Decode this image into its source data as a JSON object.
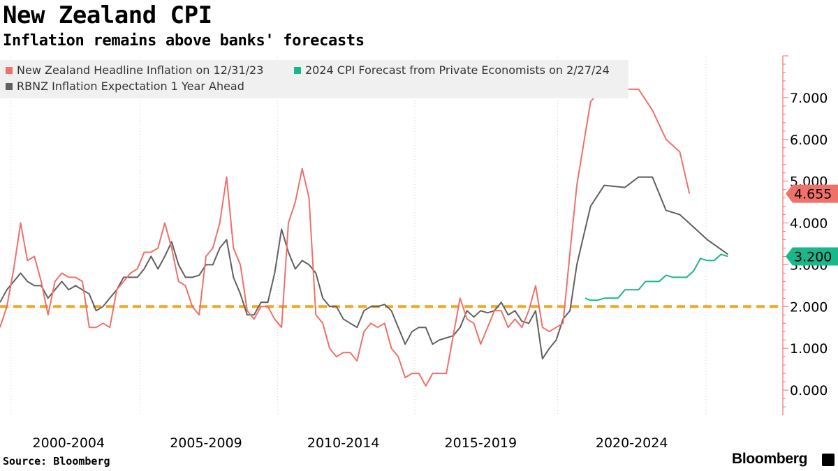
{
  "header": {
    "title": "New Zealand CPI",
    "subtitle": "Inflation remains above banks' forecasts"
  },
  "footer": {
    "source": "Source: Bloomberg",
    "brand": "Bloomberg"
  },
  "chart_data": {
    "type": "line",
    "title": "New Zealand CPI",
    "subtitle": "Inflation remains above banks' forecasts",
    "ylim": [
      -0.6,
      8.0
    ],
    "y_ticks": [
      0,
      1,
      2,
      3,
      4,
      5,
      6,
      7
    ],
    "y_tick_labels": [
      "0.000",
      "1.000",
      "2.000",
      "3.000",
      "4.000",
      "5.000",
      "6.000",
      "7.000"
    ],
    "y_axis_position": "right",
    "x_labels": [
      {
        "label": "2000-2004",
        "at": 2002
      },
      {
        "label": "2005-2009",
        "at": 2007
      },
      {
        "label": "2010-2014",
        "at": 2012
      },
      {
        "label": "2015-2019",
        "at": 2017
      },
      {
        "label": "2020-2024",
        "at": 2022.5
      }
    ],
    "x_boundaries": [
      1999.9,
      2004.6,
      2009.6,
      2014.6,
      2019.8,
      2025.2
    ],
    "xlim": [
      1999.5,
      2028
    ],
    "grid": true,
    "legend_position": "top-left",
    "reference_line": {
      "value": 2.0,
      "color": "#f5a623",
      "style": "dashed"
    },
    "series": [
      {
        "name": "New Zealand Headline Inflation on 12/31/23",
        "color": "#f0706a",
        "end_label": "4.655",
        "points": [
          [
            1999.5,
            1.5
          ],
          [
            1999.75,
            2.0
          ],
          [
            2000.0,
            2.9
          ],
          [
            2000.25,
            4.0
          ],
          [
            2000.5,
            3.1
          ],
          [
            2000.75,
            3.2
          ],
          [
            2001.0,
            2.6
          ],
          [
            2001.25,
            1.8
          ],
          [
            2001.5,
            2.6
          ],
          [
            2001.75,
            2.8
          ],
          [
            2002.0,
            2.7
          ],
          [
            2002.25,
            2.7
          ],
          [
            2002.5,
            2.6
          ],
          [
            2002.75,
            1.5
          ],
          [
            2003.0,
            1.5
          ],
          [
            2003.25,
            1.6
          ],
          [
            2003.5,
            1.5
          ],
          [
            2003.75,
            2.4
          ],
          [
            2004.0,
            2.6
          ],
          [
            2004.25,
            2.8
          ],
          [
            2004.5,
            2.9
          ],
          [
            2004.75,
            3.3
          ],
          [
            2005.0,
            3.3
          ],
          [
            2005.25,
            3.4
          ],
          [
            2005.5,
            4.0
          ],
          [
            2005.75,
            3.4
          ],
          [
            2006.0,
            2.6
          ],
          [
            2006.25,
            2.5
          ],
          [
            2006.5,
            2.0
          ],
          [
            2006.75,
            1.8
          ],
          [
            2007.0,
            3.2
          ],
          [
            2007.25,
            3.4
          ],
          [
            2007.5,
            4.0
          ],
          [
            2007.75,
            5.1
          ],
          [
            2008.0,
            3.4
          ],
          [
            2008.25,
            3.0
          ],
          [
            2008.5,
            1.9
          ],
          [
            2008.75,
            1.7
          ],
          [
            2009.0,
            2.0
          ],
          [
            2009.25,
            2.0
          ],
          [
            2009.5,
            1.7
          ],
          [
            2009.75,
            1.5
          ],
          [
            2010.0,
            4.0
          ],
          [
            2010.25,
            4.5
          ],
          [
            2010.5,
            5.3
          ],
          [
            2010.75,
            4.6
          ],
          [
            2011.0,
            1.8
          ],
          [
            2011.25,
            1.6
          ],
          [
            2011.5,
            1.0
          ],
          [
            2011.75,
            0.8
          ],
          [
            2012.0,
            0.9
          ],
          [
            2012.25,
            0.9
          ],
          [
            2012.5,
            0.7
          ],
          [
            2012.75,
            1.4
          ],
          [
            2013.0,
            1.6
          ],
          [
            2013.25,
            1.5
          ],
          [
            2013.5,
            1.6
          ],
          [
            2013.75,
            1.0
          ],
          [
            2014.0,
            0.8
          ],
          [
            2014.25,
            0.3
          ],
          [
            2014.5,
            0.4
          ],
          [
            2014.75,
            0.4
          ],
          [
            2015.0,
            0.1
          ],
          [
            2015.25,
            0.4
          ],
          [
            2015.5,
            0.4
          ],
          [
            2015.75,
            0.4
          ],
          [
            2016.0,
            1.3
          ],
          [
            2016.25,
            2.2
          ],
          [
            2016.5,
            1.7
          ],
          [
            2016.75,
            1.6
          ],
          [
            2017.0,
            1.1
          ],
          [
            2017.25,
            1.5
          ],
          [
            2017.5,
            1.9
          ],
          [
            2017.75,
            1.9
          ],
          [
            2018.0,
            1.5
          ],
          [
            2018.25,
            1.7
          ],
          [
            2018.5,
            1.5
          ],
          [
            2018.75,
            1.9
          ],
          [
            2019.0,
            2.5
          ],
          [
            2019.25,
            1.5
          ],
          [
            2019.5,
            1.4
          ],
          [
            2019.75,
            1.5
          ],
          [
            2020.0,
            1.6
          ],
          [
            2020.25,
            3.3
          ],
          [
            2020.5,
            4.9
          ],
          [
            2020.75,
            5.9
          ],
          [
            2021.0,
            6.9
          ],
          [
            2021.25,
            7.1
          ],
          [
            2021.5,
            7.3
          ],
          [
            2022.25,
            7.2
          ],
          [
            2022.75,
            7.2
          ],
          [
            2023.25,
            6.7
          ],
          [
            2023.75,
            6.0
          ],
          [
            2024.25,
            5.7
          ],
          [
            2024.6,
            4.7
          ]
        ]
      },
      {
        "name": "2024 CPI Forecast from Private Economists on 2/27/24",
        "color": "#18b78c",
        "end_label": "3.200",
        "points": [
          [
            2020.8,
            2.2
          ],
          [
            2021.0,
            2.15
          ],
          [
            2021.25,
            2.15
          ],
          [
            2021.5,
            2.2
          ],
          [
            2021.75,
            2.2
          ],
          [
            2022.0,
            2.2
          ],
          [
            2022.25,
            2.4
          ],
          [
            2022.5,
            2.4
          ],
          [
            2022.75,
            2.4
          ],
          [
            2023.0,
            2.6
          ],
          [
            2023.25,
            2.6
          ],
          [
            2023.5,
            2.6
          ],
          [
            2023.75,
            2.75
          ],
          [
            2024.0,
            2.7
          ],
          [
            2024.25,
            2.7
          ],
          [
            2024.5,
            2.7
          ],
          [
            2024.75,
            2.85
          ],
          [
            2025.0,
            3.15
          ],
          [
            2025.25,
            3.1
          ],
          [
            2025.5,
            3.1
          ],
          [
            2025.75,
            3.25
          ],
          [
            2026.0,
            3.2
          ]
        ]
      },
      {
        "name": "RBNZ Inflation Expectation 1 Year Ahead",
        "color": "#606060",
        "end_label": "",
        "points": [
          [
            1999.5,
            2.1
          ],
          [
            1999.75,
            2.4
          ],
          [
            2000.0,
            2.6
          ],
          [
            2000.25,
            2.8
          ],
          [
            2000.5,
            2.6
          ],
          [
            2000.75,
            2.5
          ],
          [
            2001.0,
            2.5
          ],
          [
            2001.25,
            2.2
          ],
          [
            2001.5,
            2.4
          ],
          [
            2001.75,
            2.6
          ],
          [
            2002.0,
            2.4
          ],
          [
            2002.25,
            2.5
          ],
          [
            2002.5,
            2.4
          ],
          [
            2002.75,
            2.3
          ],
          [
            2003.0,
            1.9
          ],
          [
            2003.25,
            2.0
          ],
          [
            2003.5,
            2.2
          ],
          [
            2003.75,
            2.4
          ],
          [
            2004.0,
            2.7
          ],
          [
            2004.25,
            2.7
          ],
          [
            2004.5,
            2.7
          ],
          [
            2004.75,
            2.9
          ],
          [
            2005.0,
            3.2
          ],
          [
            2005.25,
            2.9
          ],
          [
            2005.5,
            3.2
          ],
          [
            2005.75,
            3.55
          ],
          [
            2006.0,
            3.0
          ],
          [
            2006.25,
            2.7
          ],
          [
            2006.5,
            2.7
          ],
          [
            2006.75,
            2.75
          ],
          [
            2007.0,
            3.0
          ],
          [
            2007.25,
            3.0
          ],
          [
            2007.5,
            3.4
          ],
          [
            2007.75,
            3.6
          ],
          [
            2008.0,
            2.7
          ],
          [
            2008.25,
            2.3
          ],
          [
            2008.5,
            1.8
          ],
          [
            2008.75,
            1.8
          ],
          [
            2009.0,
            2.1
          ],
          [
            2009.25,
            2.1
          ],
          [
            2009.5,
            2.8
          ],
          [
            2009.75,
            3.85
          ],
          [
            2010.0,
            3.3
          ],
          [
            2010.25,
            2.9
          ],
          [
            2010.5,
            3.1
          ],
          [
            2010.75,
            3.0
          ],
          [
            2011.0,
            2.8
          ],
          [
            2011.25,
            2.2
          ],
          [
            2011.5,
            2.0
          ],
          [
            2011.75,
            2.0
          ],
          [
            2012.0,
            1.7
          ],
          [
            2012.25,
            1.6
          ],
          [
            2012.5,
            1.5
          ],
          [
            2012.75,
            1.9
          ],
          [
            2013.0,
            2.0
          ],
          [
            2013.25,
            2.0
          ],
          [
            2013.5,
            2.05
          ],
          [
            2013.75,
            1.9
          ],
          [
            2014.0,
            1.5
          ],
          [
            2014.25,
            1.1
          ],
          [
            2014.5,
            1.4
          ],
          [
            2014.75,
            1.5
          ],
          [
            2015.0,
            1.5
          ],
          [
            2015.25,
            1.1
          ],
          [
            2015.5,
            1.2
          ],
          [
            2015.75,
            1.25
          ],
          [
            2016.0,
            1.3
          ],
          [
            2016.25,
            1.5
          ],
          [
            2016.5,
            1.9
          ],
          [
            2016.75,
            1.75
          ],
          [
            2017.0,
            1.9
          ],
          [
            2017.25,
            1.85
          ],
          [
            2017.5,
            1.9
          ],
          [
            2017.75,
            2.1
          ],
          [
            2018.0,
            1.8
          ],
          [
            2018.25,
            1.9
          ],
          [
            2018.5,
            1.65
          ],
          [
            2018.75,
            1.6
          ],
          [
            2019.0,
            1.9
          ],
          [
            2019.25,
            0.75
          ],
          [
            2019.5,
            1.0
          ],
          [
            2019.75,
            1.2
          ],
          [
            2020.0,
            1.7
          ],
          [
            2020.25,
            1.9
          ],
          [
            2020.5,
            3.0
          ],
          [
            2020.75,
            3.7
          ],
          [
            2021.0,
            4.4
          ],
          [
            2021.5,
            4.9
          ],
          [
            2022.25,
            4.85
          ],
          [
            2022.75,
            5.1
          ],
          [
            2023.25,
            5.1
          ],
          [
            2023.75,
            4.3
          ],
          [
            2024.25,
            4.2
          ],
          [
            2024.75,
            3.9
          ],
          [
            2025.25,
            3.6
          ],
          [
            2026.0,
            3.25
          ]
        ]
      }
    ]
  }
}
